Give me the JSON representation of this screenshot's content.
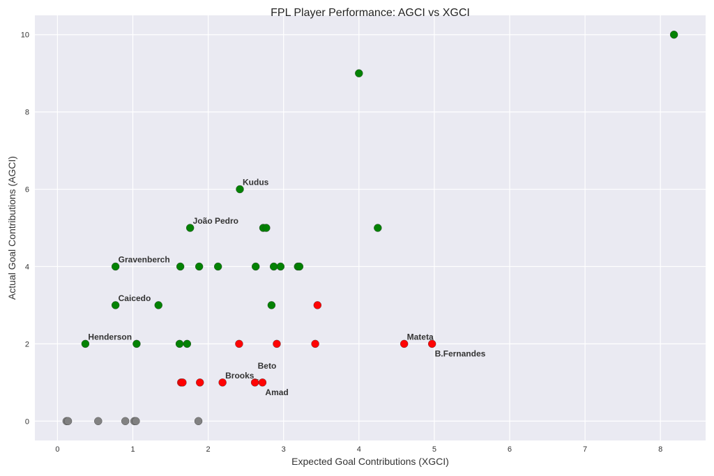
{
  "chart_data": {
    "type": "scatter",
    "title": "FPL Player Performance: AGCI vs XGCI",
    "xlabel": "Expected Goal Contributions (XGCI)",
    "ylabel": "Actual Goal Contributions (AGCI)",
    "xlim": [
      -0.3,
      8.6
    ],
    "ylim": [
      -0.5,
      10.5
    ],
    "xticks": [
      0,
      1,
      2,
      3,
      4,
      5,
      6,
      7,
      8
    ],
    "yticks": [
      0,
      2,
      4,
      6,
      8,
      10
    ],
    "grid": true,
    "colors": {
      "green": "#008000",
      "red": "#ff0000",
      "gray": "#808080",
      "background": "#eaeaf2"
    },
    "points": [
      {
        "x": 8.18,
        "y": 10,
        "color": "green"
      },
      {
        "x": 4.0,
        "y": 9,
        "color": "green"
      },
      {
        "x": 2.42,
        "y": 6,
        "color": "green",
        "label": "Kudus"
      },
      {
        "x": 1.76,
        "y": 5,
        "color": "green",
        "label": "João Pedro"
      },
      {
        "x": 2.73,
        "y": 5,
        "color": "green"
      },
      {
        "x": 2.77,
        "y": 5,
        "color": "green"
      },
      {
        "x": 4.25,
        "y": 5,
        "color": "green"
      },
      {
        "x": 0.77,
        "y": 4,
        "color": "green",
        "label": "Gravenberch"
      },
      {
        "x": 1.63,
        "y": 4,
        "color": "green"
      },
      {
        "x": 1.88,
        "y": 4,
        "color": "green"
      },
      {
        "x": 2.13,
        "y": 4,
        "color": "green"
      },
      {
        "x": 2.63,
        "y": 4,
        "color": "green"
      },
      {
        "x": 2.87,
        "y": 4,
        "color": "green"
      },
      {
        "x": 2.96,
        "y": 4,
        "color": "green"
      },
      {
        "x": 3.19,
        "y": 4,
        "color": "green"
      },
      {
        "x": 3.21,
        "y": 4,
        "color": "green"
      },
      {
        "x": 0.77,
        "y": 3,
        "color": "green",
        "label": "Caicedo"
      },
      {
        "x": 1.34,
        "y": 3,
        "color": "green"
      },
      {
        "x": 2.84,
        "y": 3,
        "color": "green"
      },
      {
        "x": 0.37,
        "y": 2,
        "color": "green",
        "label": "Henderson"
      },
      {
        "x": 1.05,
        "y": 2,
        "color": "green"
      },
      {
        "x": 1.62,
        "y": 2,
        "color": "green"
      },
      {
        "x": 1.72,
        "y": 2,
        "color": "green"
      },
      {
        "x": 3.45,
        "y": 3,
        "color": "red"
      },
      {
        "x": 2.41,
        "y": 2,
        "color": "red"
      },
      {
        "x": 2.91,
        "y": 2,
        "color": "red"
      },
      {
        "x": 3.42,
        "y": 2,
        "color": "red"
      },
      {
        "x": 4.6,
        "y": 2,
        "color": "red",
        "label": "Mateta"
      },
      {
        "x": 4.97,
        "y": 2,
        "color": "red",
        "label": "B.Fernandes"
      },
      {
        "x": 1.64,
        "y": 1,
        "color": "red"
      },
      {
        "x": 1.66,
        "y": 1,
        "color": "red"
      },
      {
        "x": 1.89,
        "y": 1,
        "color": "red"
      },
      {
        "x": 2.19,
        "y": 1,
        "color": "red",
        "label": "Brooks_"
      },
      {
        "x": 2.62,
        "y": 1,
        "color": "red",
        "label": "Beto"
      },
      {
        "x": 2.72,
        "y": 1,
        "color": "red",
        "label": "Amad"
      },
      {
        "x": 0.12,
        "y": 0,
        "color": "gray"
      },
      {
        "x": 0.14,
        "y": 0,
        "color": "gray"
      },
      {
        "x": 0.54,
        "y": 0,
        "color": "gray"
      },
      {
        "x": 0.9,
        "y": 0,
        "color": "gray"
      },
      {
        "x": 1.02,
        "y": 0,
        "color": "gray"
      },
      {
        "x": 1.04,
        "y": 0,
        "color": "gray"
      },
      {
        "x": 1.87,
        "y": 0,
        "color": "gray"
      }
    ]
  }
}
